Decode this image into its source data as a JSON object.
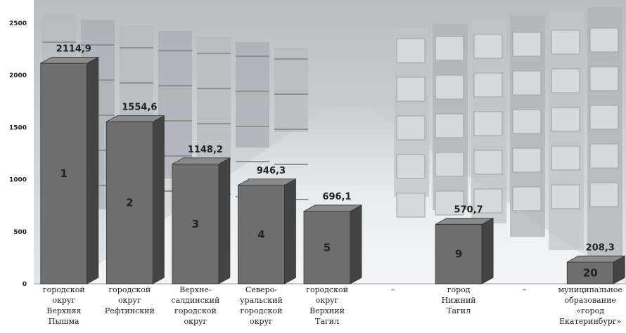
{
  "chart_data": {
    "type": "bar",
    "ylim": [
      0,
      2500
    ],
    "yticks": [
      0,
      500,
      1000,
      1500,
      2000,
      2500
    ],
    "categories": [
      [
        "городской",
        "округ",
        "Верхняя",
        "Пышма"
      ],
      [
        "городской",
        "округ",
        "Рефтинский"
      ],
      [
        "Верхне-",
        "салдинский",
        "городской",
        "округ"
      ],
      [
        "Северо-",
        "уральский",
        "городской",
        "округ"
      ],
      [
        "городской",
        "округ",
        "Верхний",
        "Тагил"
      ],
      [
        "–"
      ],
      [
        "город",
        "Нижний",
        "Тагил"
      ],
      [
        "–"
      ],
      [
        "муниципальное",
        "образование",
        "«город",
        "Екатеринбург»"
      ]
    ],
    "values": [
      2114.9,
      1554.6,
      1148.2,
      946.3,
      696.1,
      null,
      570.7,
      null,
      208.3
    ],
    "value_labels": [
      "2114,9",
      "1554,6",
      "1148,2",
      "946,3",
      "696,1",
      "",
      "570,7",
      "",
      "208,3"
    ],
    "rank_labels": [
      "1",
      "2",
      "3",
      "4",
      "5",
      "",
      "9",
      "",
      "20"
    ],
    "bar_color": "#6e6e6e",
    "bar_side_color": "#444444",
    "bar_top_color": "#8a8a8a",
    "grid": false,
    "background": "warehouse-aisle-photo"
  }
}
